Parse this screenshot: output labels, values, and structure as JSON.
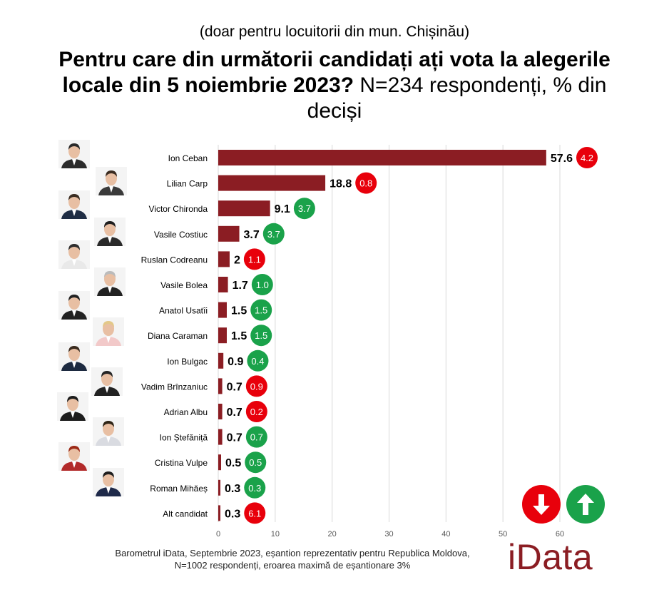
{
  "header": {
    "subtitle": "(doar pentru locuitorii din mun. Chișinău)",
    "title_bold": "Pentru care din următorii candidați ați vota la alegerile locale din 5 noiembrie 2023?",
    "title_normal": " N=234 respondenți, % din deciși"
  },
  "chart_data": {
    "type": "bar",
    "orientation": "horizontal",
    "categories": [
      "Ion Ceban",
      "Lilian Carp",
      "Victor Chironda",
      "Vasile Costiuc",
      "Ruslan Codreanu",
      "Vasile Bolea",
      "Anatol Usatîi",
      "Diana Caraman",
      "Ion Bulgac",
      "Vadim Brînzaniuc",
      "Adrian Albu",
      "Ion Ștefăniță",
      "Cristina Vulpe",
      "Roman Mihăeș",
      "Alt candidat"
    ],
    "values": [
      57.6,
      18.8,
      9.1,
      3.7,
      2,
      1.7,
      1.5,
      1.5,
      0.9,
      0.7,
      0.7,
      0.7,
      0.5,
      0.3,
      0.3
    ],
    "value_labels": [
      "57.6",
      "18.8",
      "9.1",
      "3.7",
      "2",
      "1.7",
      "1.5",
      "1.5",
      "0.9",
      "0.7",
      "0.7",
      "0.7",
      "0.5",
      "0.3",
      "0.3"
    ],
    "changes": [
      "4.2",
      "0.8",
      "3.7",
      "3.7",
      "1.1",
      "1.0",
      "1.5",
      "1.5",
      "0.4",
      "0.9",
      "0.2",
      "0.7",
      "0.5",
      "0.3",
      "6.1"
    ],
    "change_direction": [
      "down",
      "down",
      "up",
      "up",
      "down",
      "up",
      "up",
      "up",
      "up",
      "down",
      "down",
      "up",
      "up",
      "up",
      "down"
    ],
    "xlim": [
      0,
      60
    ],
    "xticks": [
      "0",
      "10",
      "20",
      "30",
      "40",
      "50",
      "60"
    ],
    "grid": true,
    "bar_color": "#8b1d23",
    "up_color": "#1aa24a",
    "down_color": "#e8000b"
  },
  "legend": {
    "down_icon": "arrow-down-icon",
    "up_icon": "arrow-up-icon"
  },
  "footer": {
    "line1": "Barometrul iData, Septembrie 2023, eșantion reprezentativ pentru Republica Moldova,",
    "line2": "N=1002 respondenți, eroarea maximă de eșantionare 3%"
  },
  "brand": "iData"
}
